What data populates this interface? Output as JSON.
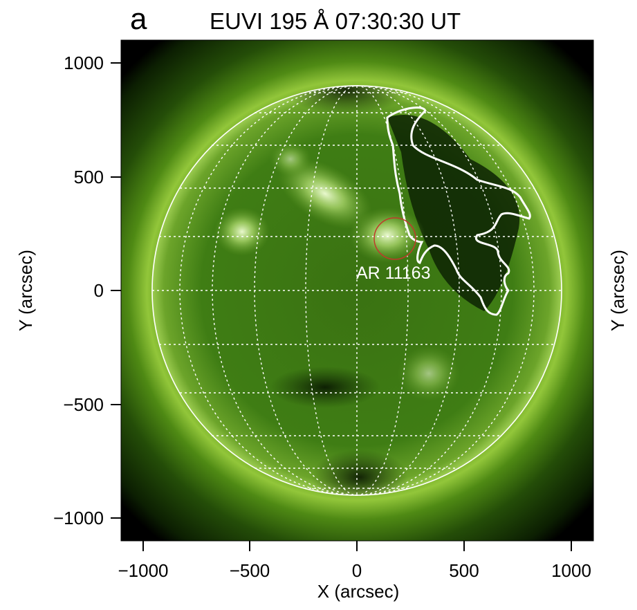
{
  "figure": {
    "panel_letter": "a",
    "title": "EUVI 195 Å 07:30:30 UT",
    "x_axis_label": "X (arcsec)",
    "y_axis_label_left": "Y (arcsec)",
    "y_axis_label_right": "Y (arcsec)",
    "x_ticks": [
      "−1000",
      "−500",
      "0",
      "500",
      "1000"
    ],
    "y_ticks": [
      "1000",
      "500",
      "0",
      "−500",
      "−1000"
    ],
    "region_label": "AR 11163",
    "colors": {
      "disk_green": "#3d7a12",
      "corona_green": "#6fae1c",
      "contour": "#ffffff",
      "region_circle": "#c0392b"
    }
  }
}
